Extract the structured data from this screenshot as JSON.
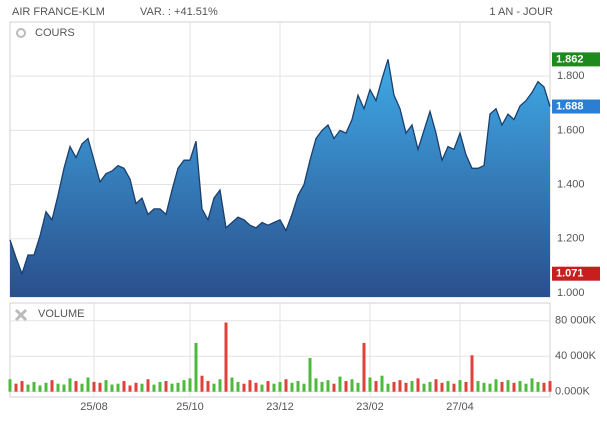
{
  "header": {
    "name": "AIR FRANCE-KLM",
    "variation": "VAR. : +41.51%",
    "period": "1 AN - JOUR"
  },
  "chart_data": [
    {
      "type": "area",
      "title": "COURS",
      "color": "#2f7fc4",
      "line_color": "#1b3f6e",
      "values": [
        1.196,
        1.13,
        1.071,
        1.14,
        1.14,
        1.21,
        1.3,
        1.27,
        1.36,
        1.46,
        1.54,
        1.5,
        1.55,
        1.57,
        1.49,
        1.41,
        1.44,
        1.45,
        1.47,
        1.46,
        1.42,
        1.33,
        1.35,
        1.29,
        1.31,
        1.31,
        1.29,
        1.38,
        1.46,
        1.49,
        1.49,
        1.56,
        1.31,
        1.27,
        1.35,
        1.38,
        1.24,
        1.26,
        1.28,
        1.27,
        1.25,
        1.24,
        1.26,
        1.25,
        1.26,
        1.27,
        1.23,
        1.29,
        1.36,
        1.4,
        1.49,
        1.57,
        1.6,
        1.62,
        1.57,
        1.6,
        1.59,
        1.64,
        1.73,
        1.68,
        1.75,
        1.71,
        1.79,
        1.862,
        1.73,
        1.68,
        1.59,
        1.62,
        1.53,
        1.6,
        1.67,
        1.59,
        1.49,
        1.54,
        1.53,
        1.59,
        1.51,
        1.46,
        1.46,
        1.47,
        1.66,
        1.68,
        1.62,
        1.66,
        1.64,
        1.69,
        1.71,
        1.74,
        1.78,
        1.76,
        1.688
      ],
      "ylim": [
        0.985,
        2.0
      ],
      "yticks": [
        {
          "value": 1.0,
          "label": "1.000"
        },
        {
          "value": 1.2,
          "label": "1.200"
        },
        {
          "value": 1.4,
          "label": "1.400"
        },
        {
          "value": 1.6,
          "label": "1.600"
        },
        {
          "value": 1.8,
          "label": "1.800"
        }
      ],
      "markers": [
        {
          "value": 1.862,
          "color": "#1e8a1e"
        },
        {
          "value": 1.688,
          "color": "#2a7fd4"
        },
        {
          "value": 1.071,
          "color": "#c81e1e"
        }
      ],
      "grid": true
    },
    {
      "type": "bar",
      "title": "VOLUME",
      "up_color": "#4cbb3c",
      "down_color": "#e0413a",
      "values": [
        14000,
        9000,
        12000,
        8000,
        11000,
        7000,
        10000,
        13000,
        9000,
        8000,
        15000,
        12000,
        9000,
        16000,
        11000,
        10000,
        13000,
        8000,
        9000,
        12000,
        7000,
        10000,
        9000,
        14000,
        8000,
        11000,
        12000,
        9000,
        10000,
        13000,
        15000,
        55000,
        18000,
        12000,
        9000,
        14000,
        78000,
        16000,
        11000,
        9000,
        13000,
        10000,
        8000,
        12000,
        9000,
        11000,
        14000,
        10000,
        12000,
        9000,
        38000,
        15000,
        11000,
        13000,
        9000,
        17000,
        12000,
        14000,
        10000,
        55000,
        16000,
        12000,
        18000,
        9000,
        11000,
        13000,
        10000,
        12000,
        15000,
        9000,
        11000,
        14000,
        10000,
        12000,
        9000,
        13000,
        11000,
        41000,
        12000,
        10000,
        9000,
        14000,
        11000,
        13000,
        10000,
        12000,
        9000,
        15000,
        11000,
        10000,
        12000
      ],
      "ylim": [
        -6000,
        100000
      ],
      "yticks": [
        {
          "value": 0,
          "label": "0.000K"
        },
        {
          "value": 40000,
          "label": "40 000K"
        },
        {
          "value": 80000,
          "label": "80 000K"
        }
      ],
      "xlim": [
        0,
        90
      ],
      "xticks": [
        {
          "value": 14,
          "label": "25/08"
        },
        {
          "value": 30,
          "label": "25/10"
        },
        {
          "value": 45,
          "label": "23/12"
        },
        {
          "value": 60,
          "label": "23/02"
        },
        {
          "value": 75,
          "label": "27/04"
        }
      ],
      "grid": true
    }
  ]
}
